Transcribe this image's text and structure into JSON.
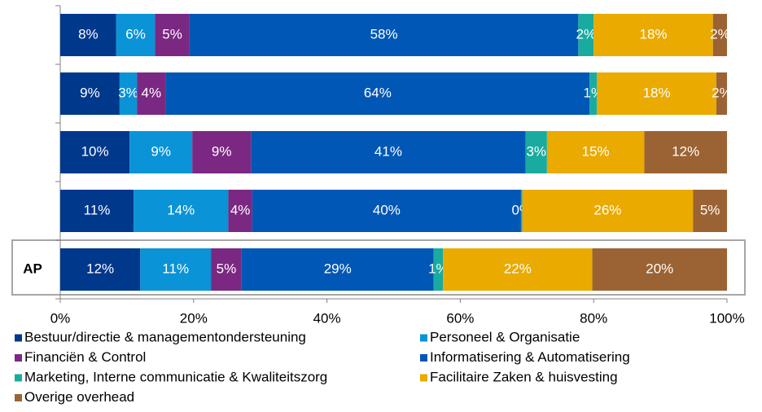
{
  "chart_data": {
    "type": "stacked_bar_horizontal",
    "categories": [
      null,
      null,
      null,
      null,
      "AP"
    ],
    "xlim": [
      0,
      100
    ],
    "xticks": [
      {
        "value": 0,
        "label": "0%"
      },
      {
        "value": 20,
        "label": "20%"
      },
      {
        "value": 40,
        "label": "40%"
      },
      {
        "value": 60,
        "label": "60%"
      },
      {
        "value": 80,
        "label": "80%"
      },
      {
        "value": 100,
        "label": "100%"
      }
    ],
    "series": [
      {
        "name": "Bestuur/directie & managementondersteuning",
        "color": "#00388c",
        "values": [
          8.4,
          8.9,
          10.4,
          11.0,
          12.0
        ],
        "value_labels": [
          "8%",
          "9%",
          "10%",
          "11%",
          "12%"
        ]
      },
      {
        "name": "Personeel & Organisatie",
        "color": "#0a93d6",
        "values": [
          5.8,
          2.6,
          9.4,
          14.2,
          10.6
        ],
        "value_labels": [
          "6%",
          "3%",
          "9%",
          "14%",
          "11%"
        ]
      },
      {
        "name": "Financiën & Control",
        "color": "#7b2882",
        "values": [
          5.2,
          4.3,
          8.8,
          3.6,
          4.6
        ],
        "value_labels": [
          "5%",
          "4%",
          "9%",
          "4%",
          "5%"
        ]
      },
      {
        "name": "Informatisering & Automatisering",
        "color": "#0057b5",
        "values": [
          58.3,
          63.6,
          41.2,
          40.3,
          28.8
        ],
        "value_labels": [
          "58%",
          "64%",
          "41%",
          "40%",
          "29%"
        ]
      },
      {
        "name": "Marketing, Interne communicatie & Kwaliteitszorg",
        "color": "#1aaba0",
        "values": [
          2.3,
          1.1,
          3.2,
          0.2,
          1.4
        ],
        "value_labels": [
          "2%",
          "1%",
          "3%",
          "0%",
          "1%"
        ]
      },
      {
        "name": "Facilitaire Zaken & huisvesting",
        "color": "#eaaa00",
        "values": [
          17.9,
          17.9,
          14.6,
          25.6,
          22.4
        ],
        "value_labels": [
          "18%",
          "18%",
          "15%",
          "26%",
          "22%"
        ]
      },
      {
        "name": "Overige overhead",
        "color": "#9b6333",
        "values": [
          2.1,
          1.6,
          12.4,
          5.1,
          20.2
        ],
        "value_labels": [
          "2%",
          "2%",
          "12%",
          "5%",
          "20%"
        ]
      }
    ]
  }
}
